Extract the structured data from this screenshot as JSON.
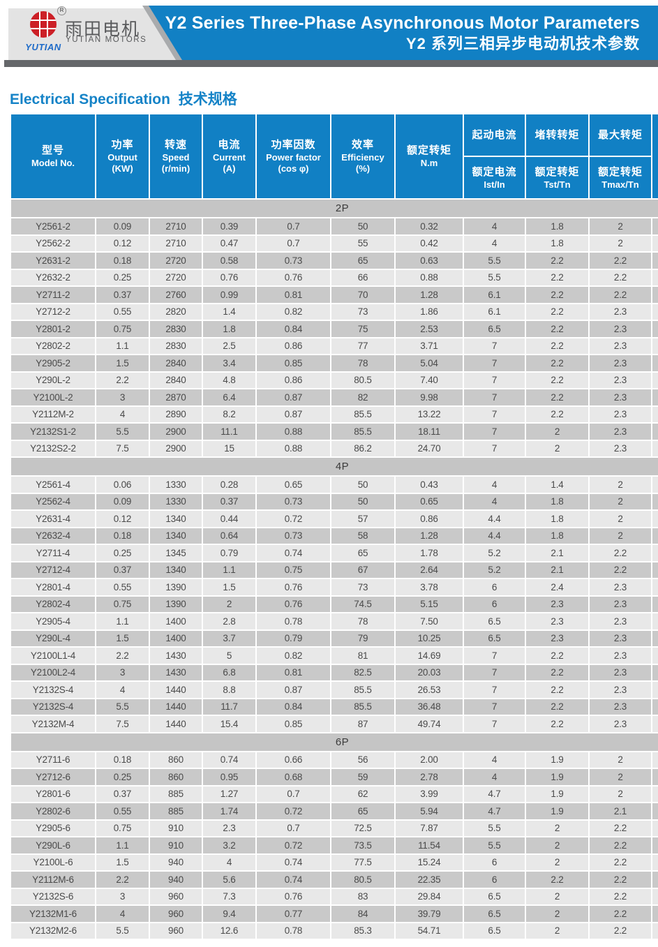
{
  "header": {
    "logo": {
      "brand_zh": "雨田电机",
      "brand_en": "YUTIAN MOTORS",
      "brand_script": "YUTIAN",
      "registered": "R"
    },
    "banner": {
      "title_en": "Y2 Series Three-Phase Asynchronous Motor Parameters",
      "title_zh": "Y2 系列三相异步电动机技术参数"
    }
  },
  "section_title": {
    "en": "Electrical Specification",
    "zh": "技术规格"
  },
  "colors": {
    "accent-blue": "#1180c4",
    "logo-red": "#cc2027",
    "row-dark": "#c9c9c9",
    "row-light": "#e8e8e8",
    "band-gray": "#c5c5c5"
  },
  "table": {
    "columns": [
      {
        "zh": "型号",
        "en": "Model No."
      },
      {
        "zh": "功率",
        "en": "Output",
        "unit": "(KW)"
      },
      {
        "zh": "转速",
        "en": "Speed",
        "unit": "(r/min)"
      },
      {
        "zh": "电流",
        "en": "Current",
        "unit": "(A)"
      },
      {
        "zh": "功率因数",
        "en": "Power factor",
        "unit": "(cos φ)"
      },
      {
        "zh": "效率",
        "en": "Efficiency",
        "unit": "(%)"
      },
      {
        "zh": "额定转矩",
        "en": "N.m"
      }
    ],
    "split_columns": [
      {
        "top": "起动电流",
        "bottom_zh": "额定电流",
        "bottom_en": "Ist/In"
      },
      {
        "top": "堵转转矩",
        "bottom_zh": "额定转矩",
        "bottom_en": "Tst/Tn"
      },
      {
        "top": "最大转矩",
        "bottom_zh": "额定转矩",
        "bottom_en": "Tmax/Tn"
      }
    ],
    "sections": [
      {
        "label": "2P",
        "first_shade": "dark",
        "rows": [
          [
            "Y2561-2",
            "0.09",
            "2710",
            "0.39",
            "0.7",
            "50",
            "0.32",
            "4",
            "1.8",
            "2"
          ],
          [
            "Y2562-2",
            "0.12",
            "2710",
            "0.47",
            "0.7",
            "55",
            "0.42",
            "4",
            "1.8",
            "2"
          ],
          [
            "Y2631-2",
            "0.18",
            "2720",
            "0.58",
            "0.73",
            "65",
            "0.63",
            "5.5",
            "2.2",
            "2.2"
          ],
          [
            "Y2632-2",
            "0.25",
            "2720",
            "0.76",
            "0.76",
            "66",
            "0.88",
            "5.5",
            "2.2",
            "2.2"
          ],
          [
            "Y2711-2",
            "0.37",
            "2760",
            "0.99",
            "0.81",
            "70",
            "1.28",
            "6.1",
            "2.2",
            "2.2"
          ],
          [
            "Y2712-2",
            "0.55",
            "2820",
            "1.4",
            "0.82",
            "73",
            "1.86",
            "6.1",
            "2.2",
            "2.3"
          ],
          [
            "Y2801-2",
            "0.75",
            "2830",
            "1.8",
            "0.84",
            "75",
            "2.53",
            "6.5",
            "2.2",
            "2.3"
          ],
          [
            "Y2802-2",
            "1.1",
            "2830",
            "2.5",
            "0.86",
            "77",
            "3.71",
            "7",
            "2.2",
            "2.3"
          ],
          [
            "Y2905-2",
            "1.5",
            "2840",
            "3.4",
            "0.85",
            "78",
            "5.04",
            "7",
            "2.2",
            "2.3"
          ],
          [
            "Y290L-2",
            "2.2",
            "2840",
            "4.8",
            "0.86",
            "80.5",
            "7.40",
            "7",
            "2.2",
            "2.3"
          ],
          [
            "Y2100L-2",
            "3",
            "2870",
            "6.4",
            "0.87",
            "82",
            "9.98",
            "7",
            "2.2",
            "2.3"
          ],
          [
            "Y2112M-2",
            "4",
            "2890",
            "8.2",
            "0.87",
            "85.5",
            "13.22",
            "7",
            "2.2",
            "2.3"
          ],
          [
            "Y2132S1-2",
            "5.5",
            "2900",
            "11.1",
            "0.88",
            "85.5",
            "18.11",
            "7",
            "2",
            "2.3"
          ],
          [
            "Y2132S2-2",
            "7.5",
            "2900",
            "15",
            "0.88",
            "86.2",
            "24.70",
            "7",
            "2",
            "2.3"
          ]
        ]
      },
      {
        "label": "4P",
        "first_shade": "light",
        "rows": [
          [
            "Y2561-4",
            "0.06",
            "1330",
            "0.28",
            "0.65",
            "50",
            "0.43",
            "4",
            "1.4",
            "2"
          ],
          [
            "Y2562-4",
            "0.09",
            "1330",
            "0.37",
            "0.73",
            "50",
            "0.65",
            "4",
            "1.8",
            "2"
          ],
          [
            "Y2631-4",
            "0.12",
            "1340",
            "0.44",
            "0.72",
            "57",
            "0.86",
            "4.4",
            "1.8",
            "2"
          ],
          [
            "Y2632-4",
            "0.18",
            "1340",
            "0.64",
            "0.73",
            "58",
            "1.28",
            "4.4",
            "1.8",
            "2"
          ],
          [
            "Y2711-4",
            "0.25",
            "1345",
            "0.79",
            "0.74",
            "65",
            "1.78",
            "5.2",
            "2.1",
            "2.2"
          ],
          [
            "Y2712-4",
            "0.37",
            "1340",
            "1.1",
            "0.75",
            "67",
            "2.64",
            "5.2",
            "2.1",
            "2.2"
          ],
          [
            "Y2801-4",
            "0.55",
            "1390",
            "1.5",
            "0.76",
            "73",
            "3.78",
            "6",
            "2.4",
            "2.3"
          ],
          [
            "Y2802-4",
            "0.75",
            "1390",
            "2",
            "0.76",
            "74.5",
            "5.15",
            "6",
            "2.3",
            "2.3"
          ],
          [
            "Y2905-4",
            "1.1",
            "1400",
            "2.8",
            "0.78",
            "78",
            "7.50",
            "6.5",
            "2.3",
            "2.3"
          ],
          [
            "Y290L-4",
            "1.5",
            "1400",
            "3.7",
            "0.79",
            "79",
            "10.25",
            "6.5",
            "2.3",
            "2.3"
          ],
          [
            "Y2100L1-4",
            "2.2",
            "1430",
            "5",
            "0.82",
            "81",
            "14.69",
            "7",
            "2.2",
            "2.3"
          ],
          [
            "Y2100L2-4",
            "3",
            "1430",
            "6.8",
            "0.81",
            "82.5",
            "20.03",
            "7",
            "2.2",
            "2.3"
          ],
          [
            "Y2132S-4",
            "4",
            "1440",
            "8.8",
            "0.87",
            "85.5",
            "26.53",
            "7",
            "2.2",
            "2.3"
          ],
          [
            "Y2132S-4",
            "5.5",
            "1440",
            "11.7",
            "0.84",
            "85.5",
            "36.48",
            "7",
            "2.2",
            "2.3"
          ],
          [
            "Y2132M-4",
            "7.5",
            "1440",
            "15.4",
            "0.85",
            "87",
            "49.74",
            "7",
            "2.2",
            "2.3"
          ]
        ]
      },
      {
        "label": "6P",
        "first_shade": "light",
        "rows": [
          [
            "Y2711-6",
            "0.18",
            "860",
            "0.74",
            "0.66",
            "56",
            "2.00",
            "4",
            "1.9",
            "2"
          ],
          [
            "Y2712-6",
            "0.25",
            "860",
            "0.95",
            "0.68",
            "59",
            "2.78",
            "4",
            "1.9",
            "2"
          ],
          [
            "Y2801-6",
            "0.37",
            "885",
            "1.27",
            "0.7",
            "62",
            "3.99",
            "4.7",
            "1.9",
            "2"
          ],
          [
            "Y2802-6",
            "0.55",
            "885",
            "1.74",
            "0.72",
            "65",
            "5.94",
            "4.7",
            "1.9",
            "2.1"
          ],
          [
            "Y2905-6",
            "0.75",
            "910",
            "2.3",
            "0.7",
            "72.5",
            "7.87",
            "5.5",
            "2",
            "2.2"
          ],
          [
            "Y290L-6",
            "1.1",
            "910",
            "3.2",
            "0.72",
            "73.5",
            "11.54",
            "5.5",
            "2",
            "2.2"
          ],
          [
            "Y2100L-6",
            "1.5",
            "940",
            "4",
            "0.74",
            "77.5",
            "15.24",
            "6",
            "2",
            "2.2"
          ],
          [
            "Y2112M-6",
            "2.2",
            "940",
            "5.6",
            "0.74",
            "80.5",
            "22.35",
            "6",
            "2.2",
            "2.2"
          ],
          [
            "Y2132S-6",
            "3",
            "960",
            "7.3",
            "0.76",
            "83",
            "29.84",
            "6.5",
            "2",
            "2.2"
          ],
          [
            "Y2132M1-6",
            "4",
            "960",
            "9.4",
            "0.77",
            "84",
            "39.79",
            "6.5",
            "2",
            "2.2"
          ],
          [
            "Y2132M2-6",
            "5.5",
            "960",
            "12.6",
            "0.78",
            "85.3",
            "54.71",
            "6.5",
            "2",
            "2.2"
          ]
        ]
      }
    ]
  }
}
